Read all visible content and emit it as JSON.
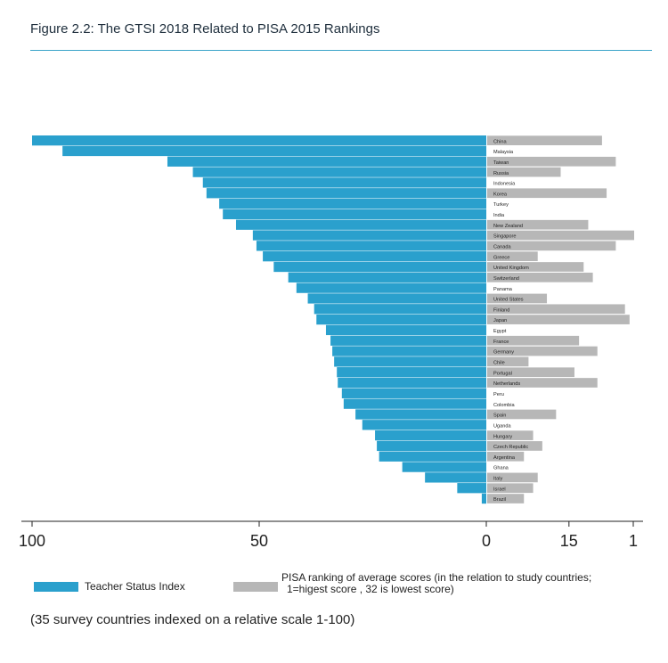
{
  "figure_title": "Figure 2.2: The GTSI 2018 Related to PISA 2015 Rankings",
  "footnote": "(35 survey countries indexed on a relative scale 1-100)",
  "colors": {
    "tsi": "#2aa0cd",
    "pisa": "#b7b7b7",
    "rule": "#3aa3c9",
    "axis": "#222222"
  },
  "chart_data": {
    "type": "bar",
    "orientation": "horizontal",
    "title": "Figure 2.2: The GTSI 2018 Related to PISA 2015 Rankings",
    "legend": [
      {
        "name": "Teacher Status Index",
        "color": "#2aa0cd"
      },
      {
        "name": "PISA ranking of average scores (in the relation to study countries;",
        "name_line2": "1=higest score , 32 is lowest score)",
        "color": "#b7b7b7"
      }
    ],
    "x_left_ticks": [
      "100",
      "50",
      "0"
    ],
    "x_right_ticks": [
      "15",
      "1"
    ],
    "categories": [
      "China",
      "Malaysia",
      "Taiwan",
      "Russia",
      "Indonesia",
      "Korea",
      "Turkey",
      "India",
      "New Zealand",
      "Singapore",
      "Canada",
      "Greece",
      "United Kingdom",
      "Switzerland",
      "Panama",
      "United States",
      "Finland",
      "Japan",
      "Egypt",
      "France",
      "Germany",
      "Chile",
      "Portugal",
      "Netherlands",
      "Peru",
      "Colombia",
      "Spain",
      "Uganda",
      "Hungary",
      "Czech Republic",
      "Argentina",
      "Ghana",
      "Italy",
      "Israel",
      "Brazil"
    ],
    "series": [
      {
        "name": "Teacher Status Index",
        "values": [
          100,
          93.3,
          70.2,
          64.6,
          62.4,
          61.6,
          58.8,
          58.0,
          55.1,
          51.4,
          50.6,
          49.2,
          46.8,
          43.6,
          41.8,
          39.3,
          37.9,
          37.4,
          35.3,
          34.3,
          33.9,
          33.5,
          32.9,
          32.7,
          31.8,
          31.4,
          28.8,
          27.3,
          24.5,
          24.1,
          23.6,
          18.5,
          13.5,
          6.4,
          1.0
        ]
      },
      {
        "name": "PISA ranking",
        "values": [
          8,
          0,
          5,
          17,
          0,
          7,
          0,
          0,
          11,
          1,
          5,
          22,
          12,
          10,
          0,
          20,
          3,
          2,
          0,
          13,
          9,
          24,
          14,
          9,
          0,
          0,
          18,
          0,
          23,
          21,
          25,
          0,
          22,
          23,
          25
        ]
      }
    ],
    "xlim_tsi": [
      0,
      100
    ],
    "pisa_scale": "rank 1 (longest bar) to 32 (shortest bar)"
  }
}
